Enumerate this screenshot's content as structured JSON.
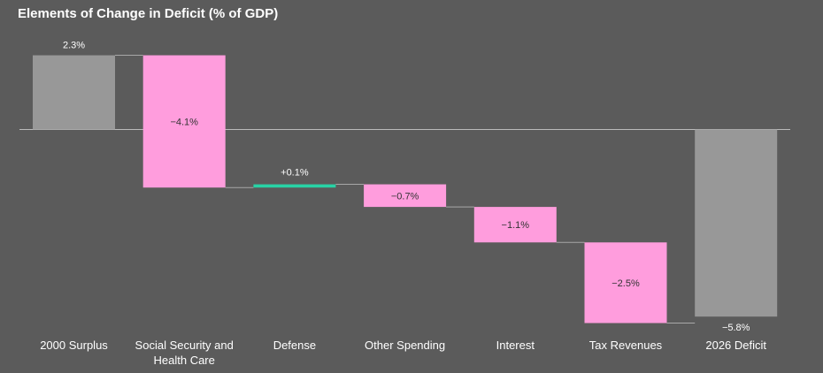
{
  "chart_data": {
    "type": "bar",
    "subtype": "waterfall",
    "title": "Elements of Change in Deficit (% of GDP)",
    "xlabel": "",
    "ylabel": "",
    "ylim": [
      -6.8,
      3.4
    ],
    "grid": false,
    "legend": "none",
    "categories": [
      [
        "2000 Surplus"
      ],
      [
        "Social Security and",
        "Health Care"
      ],
      [
        "Defense"
      ],
      [
        "Other Spending"
      ],
      [
        "Interest"
      ],
      [
        "Tax Revenues"
      ],
      [
        "2026 Deficit"
      ]
    ],
    "values": [
      2.3,
      -4.1,
      0.1,
      -0.7,
      -1.1,
      -2.5,
      -5.8
    ],
    "kinds": [
      "total",
      "delta",
      "delta",
      "delta",
      "delta",
      "delta",
      "total"
    ],
    "labels": [
      "2.3%",
      "−4.1%",
      "+0.1%",
      "−0.7%",
      "−1.1%",
      "−2.5%",
      "−5.8%"
    ],
    "colors": {
      "background": "#5b5b5b",
      "total": "#989898",
      "decrease": "#ff9ddd",
      "increase": "#28d2a5",
      "axis": "#bbbbbb",
      "connector": "#a8a8a8",
      "text": "#ffffff",
      "text_on_bar": "#333333"
    }
  }
}
